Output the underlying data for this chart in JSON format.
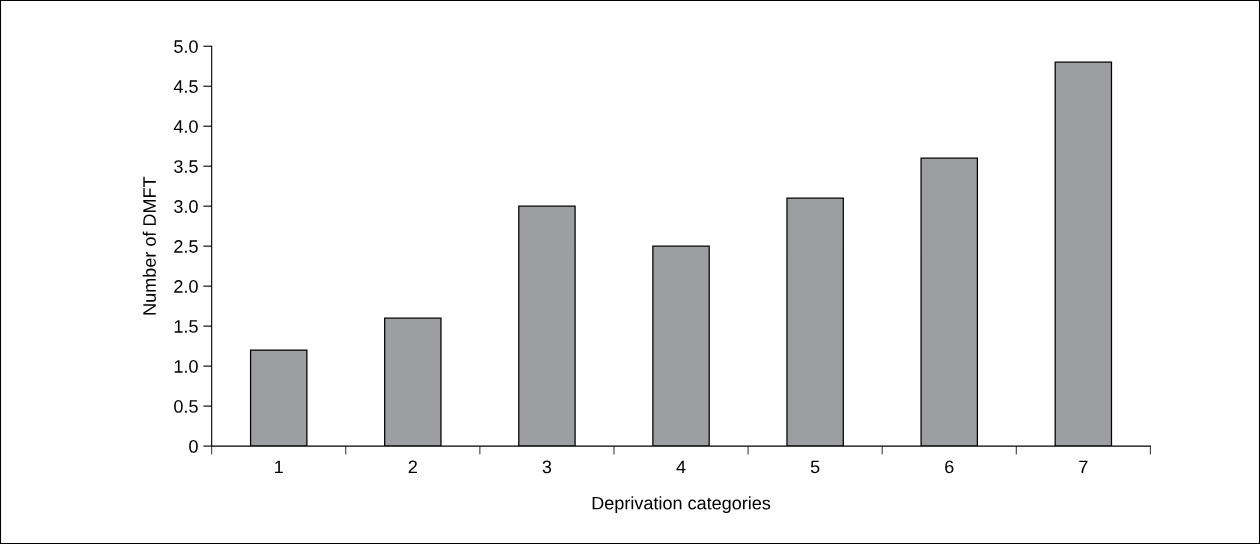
{
  "chart_data": {
    "type": "bar",
    "xlabel": "Deprivation categories",
    "ylabel": "Number of DMFT",
    "categories": [
      "1",
      "2",
      "3",
      "4",
      "5",
      "6",
      "7"
    ],
    "values": [
      1.2,
      1.6,
      3.0,
      2.5,
      3.1,
      3.6,
      4.8
    ],
    "color": "#9d9ea2",
    "ylim": [
      0,
      5.0
    ],
    "yticks": [
      0,
      {
        "value": 0.5,
        "label": "0.5"
      },
      {
        "value": 1.0,
        "label": "1.0"
      },
      {
        "value": 1.5,
        "label": "1.5"
      },
      {
        "value": 2.0,
        "label": "2.0"
      },
      {
        "value": 2.5,
        "label": "2.5"
      },
      {
        "value": 3.0,
        "label": "3.0"
      },
      {
        "value": 3.5,
        "label": "3.5"
      },
      {
        "value": 4.0,
        "label": "4.0"
      },
      {
        "value": 4.5,
        "label": "4.5"
      },
      {
        "value": 5.0,
        "label": "5.0"
      }
    ],
    "grid": false,
    "legend": false
  }
}
